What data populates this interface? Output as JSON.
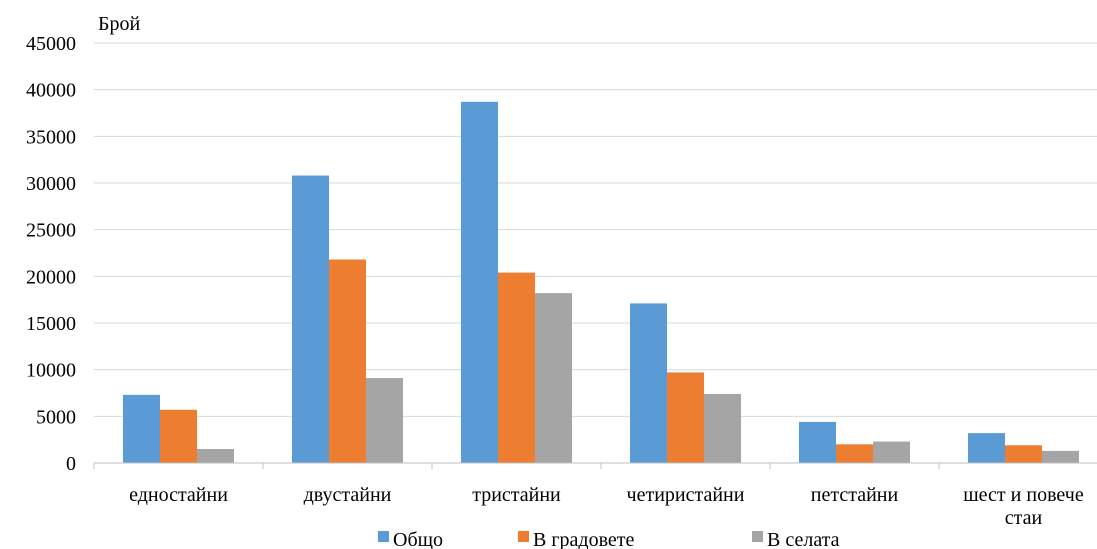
{
  "chart_data": {
    "type": "bar",
    "ylabel": "Брой",
    "ylim": [
      0,
      45000
    ],
    "yticks": [
      "0",
      "5000",
      "10000",
      "15000",
      "20000",
      "25000",
      "30000",
      "35000",
      "40000",
      "45000"
    ],
    "grid": true,
    "legend_position": "bottom",
    "categories": [
      [
        "едностайни"
      ],
      [
        "двустайни"
      ],
      [
        "тристайни"
      ],
      [
        "четиристайни"
      ],
      [
        "петстайни"
      ],
      [
        "шест и повече",
        "стаи"
      ]
    ],
    "series": [
      {
        "name": "Общо",
        "color": "#5B9BD5",
        "values": [
          7300,
          30800,
          38700,
          17100,
          4400,
          3200
        ]
      },
      {
        "name": "В градовете",
        "color": "#ED7D31",
        "values": [
          5700,
          21800,
          20400,
          9700,
          2000,
          1900
        ]
      },
      {
        "name": "В селата",
        "color": "#A5A5A5",
        "values": [
          1500,
          9100,
          18200,
          7400,
          2300,
          1300
        ]
      }
    ]
  }
}
